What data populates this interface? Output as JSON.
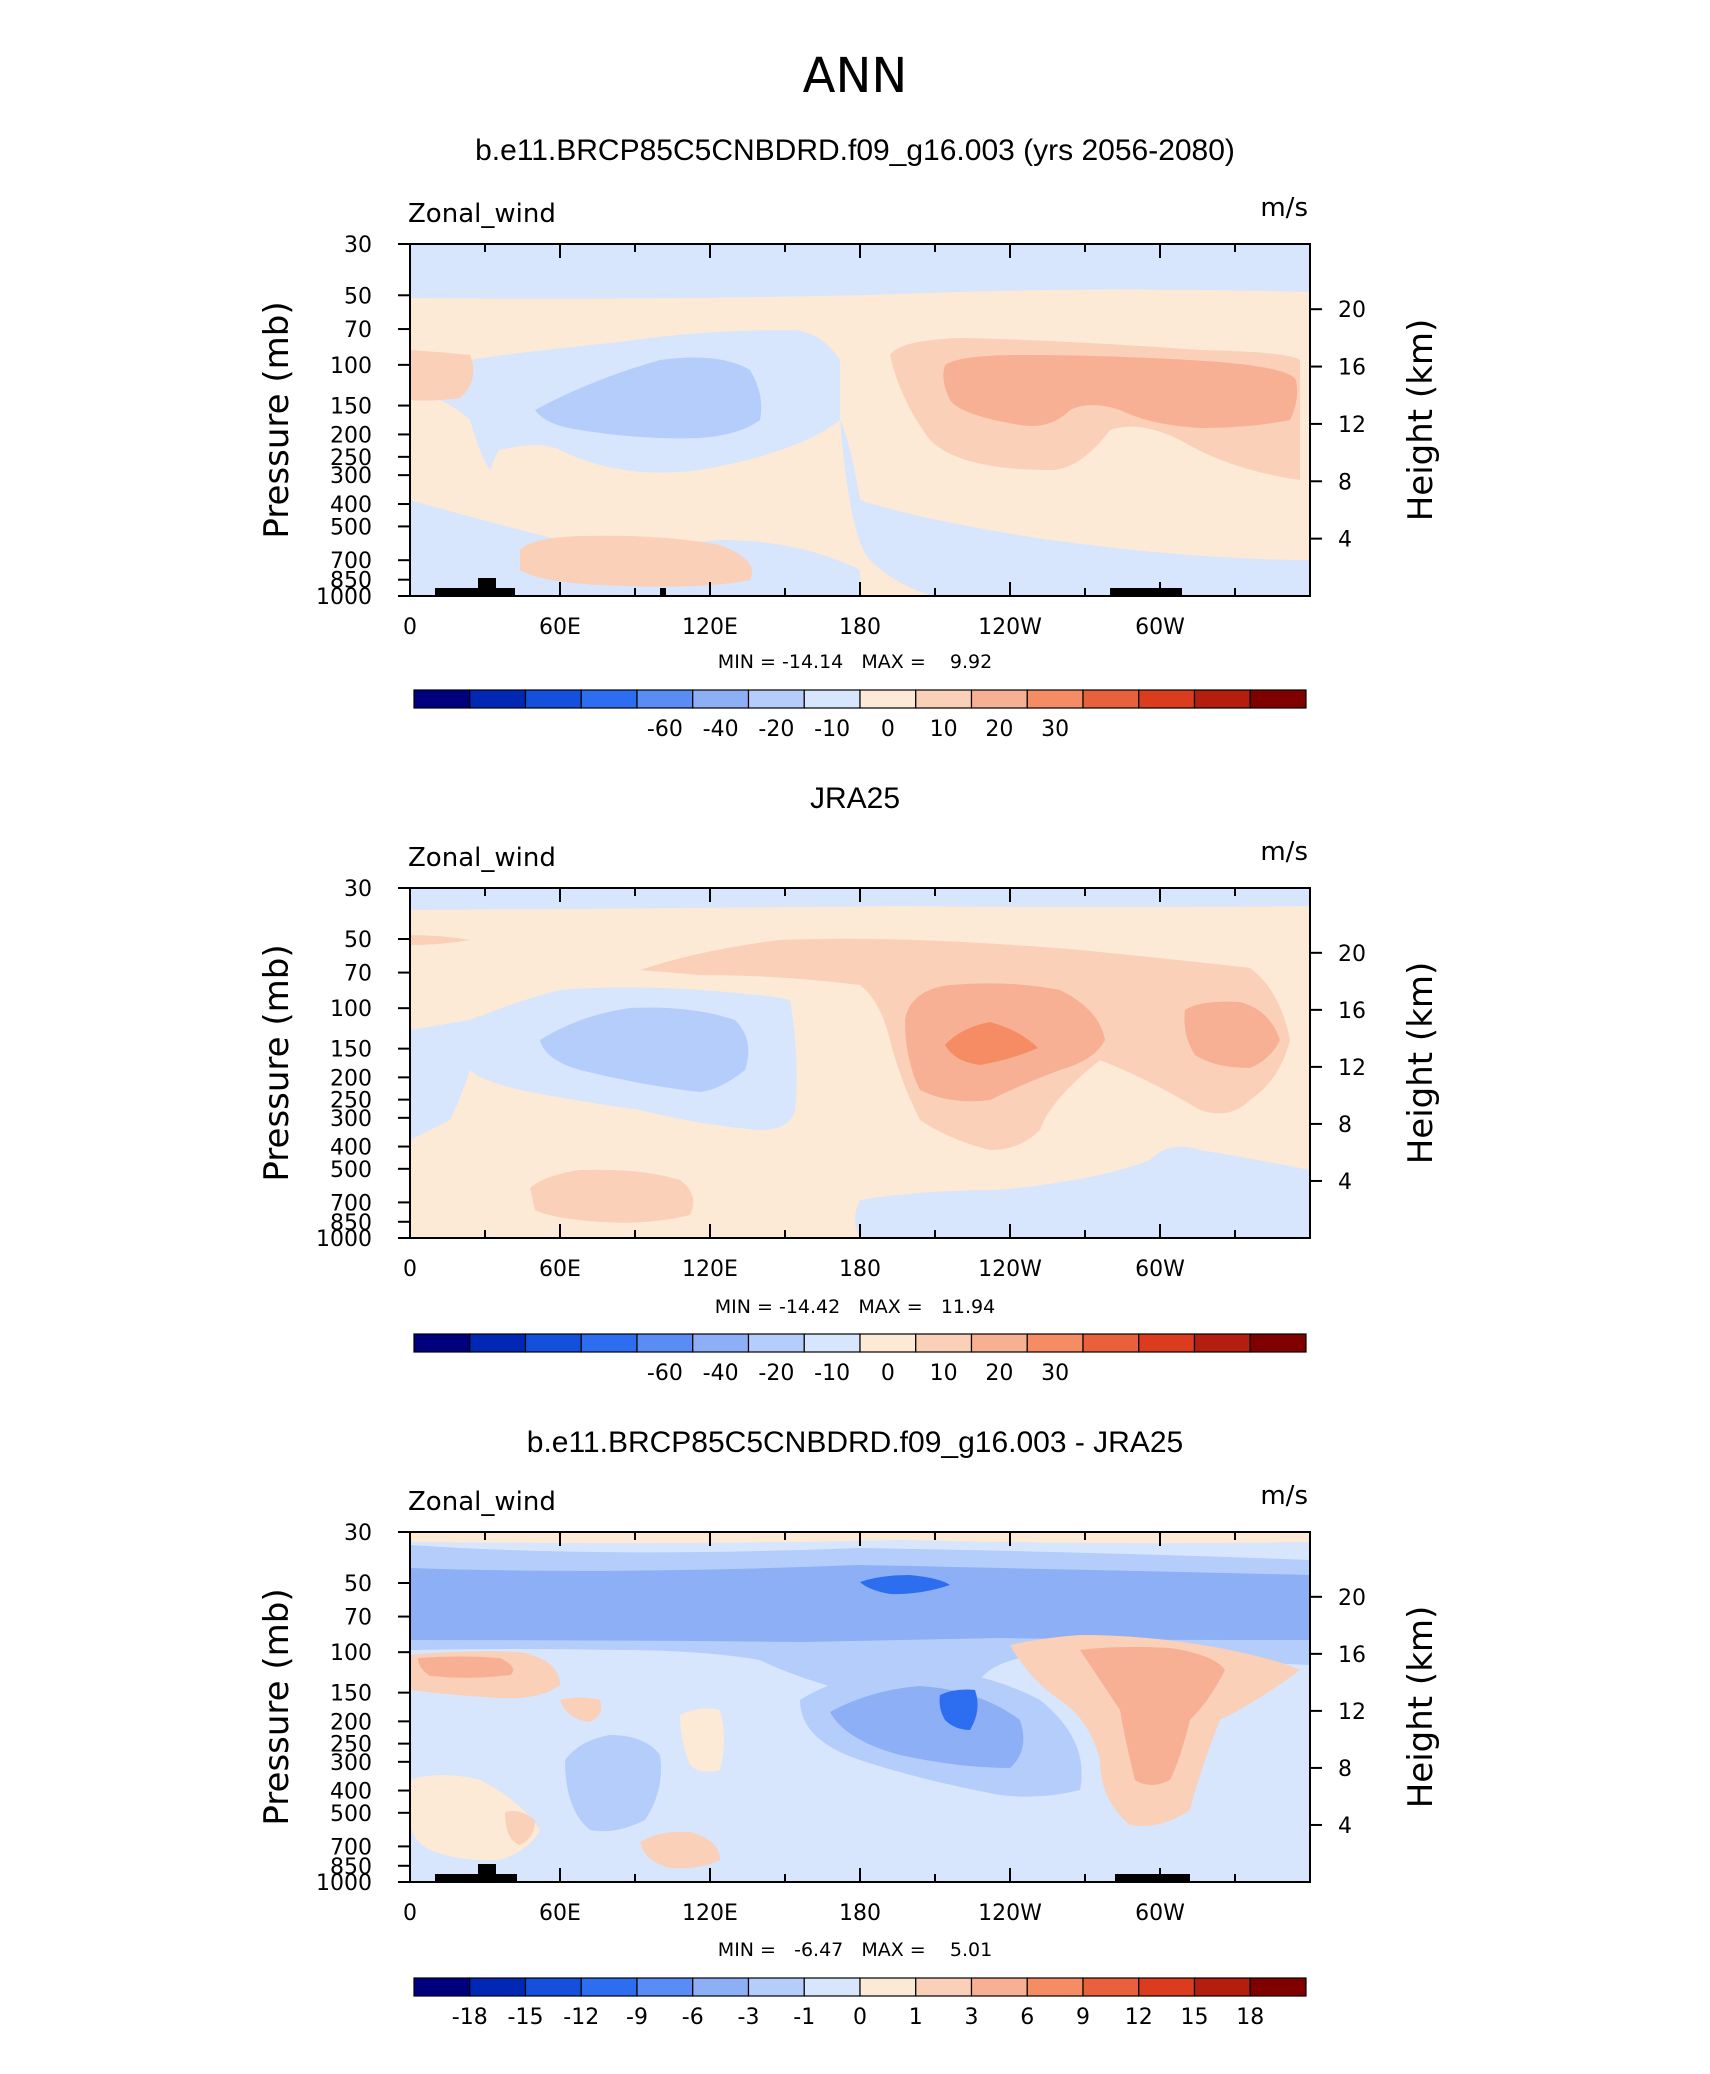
{
  "figure_title": "ANN",
  "chart_data": [
    {
      "type": "heatmap",
      "title": "b.e11.BRCP85C5CNBDRD.f09_g16.003 (yrs 2056-2080)",
      "left_label": "Zonal_wind",
      "right_label": "m/s",
      "ylabel": "Pressure (mb)",
      "y2label": "Height (km)",
      "x_ticks": [
        "0",
        "60E",
        "120E",
        "180",
        "120W",
        "60W"
      ],
      "y_ticks": [
        "30",
        "50",
        "70",
        "100",
        "150",
        "200",
        "250",
        "300",
        "400",
        "500",
        "700",
        "850",
        "1000"
      ],
      "y2_ticks": [
        "20",
        "16",
        "12",
        "8",
        "4"
      ],
      "min_max": "MIN = -14.14   MAX =    9.92",
      "min": -14.14,
      "max": 9.92,
      "colorbar_labels": [
        "-60",
        "-40",
        "-20",
        "-10",
        "0",
        "10",
        "20",
        "30"
      ]
    },
    {
      "type": "heatmap",
      "title": "JRA25",
      "left_label": "Zonal_wind",
      "right_label": "m/s",
      "ylabel": "Pressure (mb)",
      "y2label": "Height (km)",
      "x_ticks": [
        "0",
        "60E",
        "120E",
        "180",
        "120W",
        "60W"
      ],
      "y_ticks": [
        "30",
        "50",
        "70",
        "100",
        "150",
        "200",
        "250",
        "300",
        "400",
        "500",
        "700",
        "850",
        "1000"
      ],
      "y2_ticks": [
        "20",
        "16",
        "12",
        "8",
        "4"
      ],
      "min_max": "MIN = -14.42   MAX =   11.94",
      "min": -14.42,
      "max": 11.94,
      "colorbar_labels": [
        "-60",
        "-40",
        "-20",
        "-10",
        "0",
        "10",
        "20",
        "30"
      ]
    },
    {
      "type": "heatmap",
      "title": "b.e11.BRCP85C5CNBDRD.f09_g16.003 - JRA25",
      "left_label": "Zonal_wind",
      "right_label": "m/s",
      "ylabel": "Pressure (mb)",
      "y2label": "Height (km)",
      "x_ticks": [
        "0",
        "60E",
        "120E",
        "180",
        "120W",
        "60W"
      ],
      "y_ticks": [
        "30",
        "50",
        "70",
        "100",
        "150",
        "200",
        "250",
        "300",
        "400",
        "500",
        "700",
        "850",
        "1000"
      ],
      "y2_ticks": [
        "20",
        "16",
        "12",
        "8",
        "4"
      ],
      "min_max": "MIN =   -6.47   MAX =    5.01",
      "min": -6.47,
      "max": 5.01,
      "colorbar_labels": [
        "-18",
        "-15",
        "-12",
        "-9",
        "-6",
        "-3",
        "-1",
        "0",
        "1",
        "3",
        "6",
        "9",
        "12",
        "15",
        "18"
      ]
    }
  ],
  "colors": {
    "levels": [
      "#00007f",
      "#0028b4",
      "#1450dc",
      "#2d6ef0",
      "#5a8cf5",
      "#8caff5",
      "#b4cdfa",
      "#d7e6fc",
      "#fce9d6",
      "#fad0b8",
      "#f7b093",
      "#f58c64",
      "#e8603c",
      "#dc3c1e",
      "#b41e0f",
      "#800000"
    ]
  }
}
